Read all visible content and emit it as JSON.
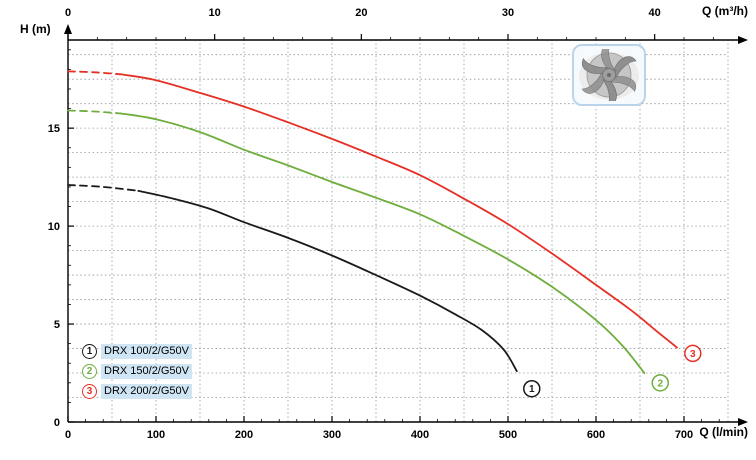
{
  "chart_data": {
    "type": "line",
    "y_axis": {
      "label": "H (m)",
      "min": 0,
      "max": 19.5,
      "major_ticks": [
        0,
        5,
        10,
        15
      ],
      "minor_step": 1,
      "grid_step": 1.25
    },
    "x_axis_bottom": {
      "label": "Q (l/min)",
      "min": 0,
      "max": 750,
      "major_ticks": [
        0,
        100,
        200,
        300,
        400,
        500,
        600,
        700
      ],
      "minor_step": 20,
      "grid_step": 50
    },
    "x_axis_top": {
      "label": "Q (m³/h)",
      "major_ticks": [
        0,
        10,
        20,
        30,
        40
      ],
      "minor_step": 2,
      "unit_to_lmin": 16.6667
    },
    "grid": {
      "on": true,
      "color": "#8e959b"
    },
    "legend": {
      "position": "bottom-left",
      "chip_bg": "#cfe5f3"
    },
    "impeller_frame_color": "#b9d4ea",
    "series": [
      {
        "index": "1",
        "name": "DRX 100/2/G50V",
        "color": "#1a1a1a",
        "dash_until": 80,
        "points": [
          [
            0,
            12.1
          ],
          [
            40,
            12.0
          ],
          [
            80,
            11.8
          ],
          [
            120,
            11.4
          ],
          [
            160,
            10.9
          ],
          [
            200,
            10.2
          ],
          [
            250,
            9.4
          ],
          [
            300,
            8.5
          ],
          [
            350,
            7.5
          ],
          [
            400,
            6.45
          ],
          [
            440,
            5.5
          ],
          [
            470,
            4.7
          ],
          [
            495,
            3.7
          ],
          [
            510,
            2.6
          ]
        ],
        "end_marker": {
          "q": 527,
          "h": 1.7
        }
      },
      {
        "index": "2",
        "name": "DRX 150/2/G50V",
        "color": "#6fae3e",
        "dash_until": 60,
        "points": [
          [
            0,
            15.9
          ],
          [
            30,
            15.85
          ],
          [
            60,
            15.75
          ],
          [
            100,
            15.45
          ],
          [
            150,
            14.8
          ],
          [
            200,
            13.9
          ],
          [
            250,
            13.1
          ],
          [
            300,
            12.25
          ],
          [
            350,
            11.45
          ],
          [
            400,
            10.6
          ],
          [
            450,
            9.5
          ],
          [
            500,
            8.3
          ],
          [
            550,
            6.9
          ],
          [
            600,
            5.2
          ],
          [
            630,
            3.9
          ],
          [
            655,
            2.5
          ]
        ],
        "end_marker": {
          "q": 673,
          "h": 2.0
        }
      },
      {
        "index": "3",
        "name": "DRX 200/2/G50V",
        "color": "#e53026",
        "dash_until": 60,
        "points": [
          [
            0,
            17.9
          ],
          [
            30,
            17.85
          ],
          [
            60,
            17.75
          ],
          [
            100,
            17.45
          ],
          [
            150,
            16.8
          ],
          [
            200,
            16.1
          ],
          [
            250,
            15.3
          ],
          [
            300,
            14.45
          ],
          [
            350,
            13.55
          ],
          [
            400,
            12.6
          ],
          [
            450,
            11.4
          ],
          [
            500,
            10.1
          ],
          [
            550,
            8.6
          ],
          [
            600,
            7.0
          ],
          [
            640,
            5.7
          ],
          [
            670,
            4.6
          ],
          [
            692,
            3.8
          ]
        ],
        "end_marker": {
          "q": 710,
          "h": 3.5
        }
      }
    ]
  }
}
